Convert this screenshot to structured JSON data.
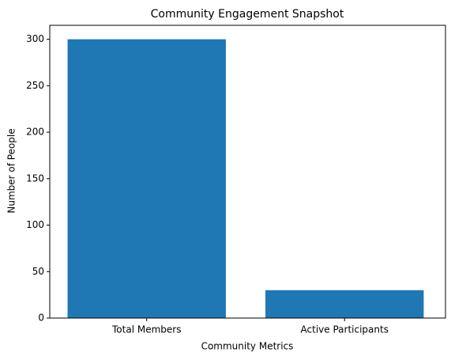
{
  "chart_data": {
    "type": "bar",
    "title": "Community Engagement Snapshot",
    "x_label": "Community Metrics",
    "y_label": "Number of People",
    "categories": [
      "Total Members",
      "Active Participants"
    ],
    "values": [
      300,
      30
    ],
    "color": "#1f77b4",
    "ylim": [
      0,
      315
    ],
    "yticks": [
      0,
      50,
      100,
      150,
      200,
      250,
      300
    ],
    "grid": false
  }
}
